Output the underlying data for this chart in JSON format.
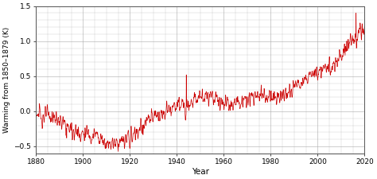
{
  "title": "",
  "xlabel": "Year",
  "ylabel": "Warming from 1850–1879 (K)",
  "xlim": [
    1880,
    2020
  ],
  "ylim": [
    -0.6,
    1.5
  ],
  "xticks": [
    1880,
    1900,
    1920,
    1940,
    1960,
    1980,
    2000,
    2020
  ],
  "yticks": [
    -0.5,
    0.0,
    0.5,
    1.0,
    1.5
  ],
  "line_color": "#cc0000",
  "line_width": 0.5,
  "grid_color": "#aaaaaa",
  "grid_major_linewidth": 0.5,
  "grid_minor_linewidth": 0.3,
  "background_color": "#ffffff",
  "fig_width": 4.74,
  "fig_height": 2.25,
  "dpi": 100,
  "ylabel_fontsize": 6.5,
  "xlabel_fontsize": 7.5,
  "tick_fontsize": 6.5,
  "spine_color": "#555555",
  "spine_linewidth": 0.7
}
